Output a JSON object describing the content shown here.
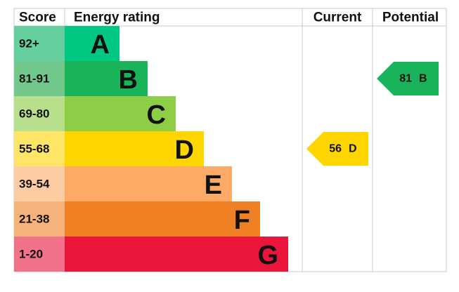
{
  "header": {
    "score": "Score",
    "energy_rating": "Energy rating",
    "current": "Current",
    "potential": "Potential"
  },
  "bands": [
    {
      "score": "92+",
      "letter": "A",
      "color": "#00c781",
      "score_color": "#66cf9f"
    },
    {
      "score": "81-91",
      "letter": "B",
      "color": "#19b459",
      "score_color": "#72c88c"
    },
    {
      "score": "69-80",
      "letter": "C",
      "color": "#8dce46",
      "score_color": "#b7df8c"
    },
    {
      "score": "55-68",
      "letter": "D",
      "color": "#ffd500",
      "score_color": "#ffe566"
    },
    {
      "score": "39-54",
      "letter": "E",
      "color": "#fcaa65",
      "score_color": "#fdcca3"
    },
    {
      "score": "21-38",
      "letter": "F",
      "color": "#ef8023",
      "score_color": "#f5b37b"
    },
    {
      "score": "1-20",
      "letter": "G",
      "color": "#e9153b",
      "score_color": "#f27389"
    }
  ],
  "current": {
    "score": 56,
    "rating": "D",
    "color": "#ffd500"
  },
  "potential": {
    "score": 81,
    "rating": "B",
    "color": "#19b459"
  }
}
